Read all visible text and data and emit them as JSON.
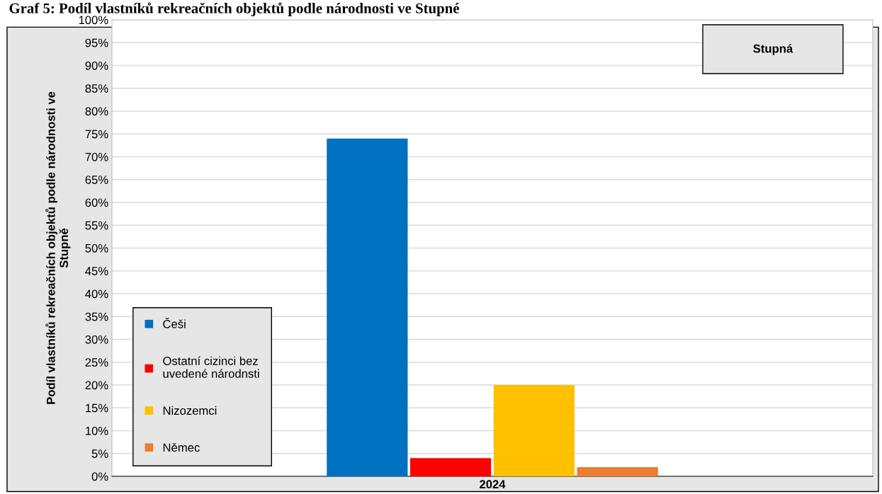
{
  "chart_data": {
    "type": "bar",
    "title": "Graf 5: Podíl vlastníků rekreačních objektů podle národnosti ve Stupné",
    "ylabel": "Podíl vlastníků rekreačních objektů podle národnosti ve\nStupně",
    "categories": [
      "2024"
    ],
    "series": [
      {
        "name": "Češi",
        "color": "#0070c0",
        "values": [
          74
        ]
      },
      {
        "name": "Ostatní cizinci bez\nuvedené národnsti",
        "color": "#ff0000",
        "values": [
          4
        ]
      },
      {
        "name": "Nizozemci",
        "color": "#ffc000",
        "values": [
          20
        ]
      },
      {
        "name": "Němec",
        "color": "#ed7d31",
        "values": [
          2
        ]
      }
    ],
    "ylim": [
      0,
      100
    ],
    "yticks": [
      {
        "value": 0,
        "label": "0%"
      },
      {
        "value": 5,
        "label": "5%"
      },
      {
        "value": 10,
        "label": "10%"
      },
      {
        "value": 15,
        "label": "15%"
      },
      {
        "value": 20,
        "label": "20%"
      },
      {
        "value": 25,
        "label": "25%"
      },
      {
        "value": 30,
        "label": "30%"
      },
      {
        "value": 35,
        "label": "35%"
      },
      {
        "value": 40,
        "label": "40%"
      },
      {
        "value": 45,
        "label": "45%"
      },
      {
        "value": 50,
        "label": "50%"
      },
      {
        "value": 55,
        "label": "55%"
      },
      {
        "value": 60,
        "label": "60%"
      },
      {
        "value": 65,
        "label": "65%"
      },
      {
        "value": 70,
        "label": "70%"
      },
      {
        "value": 75,
        "label": "75%"
      },
      {
        "value": 80,
        "label": "80%"
      },
      {
        "value": 85,
        "label": "85%"
      },
      {
        "value": 90,
        "label": "90%"
      },
      {
        "value": 95,
        "label": "95%"
      },
      {
        "value": 100,
        "label": "100%"
      }
    ],
    "grid": "y",
    "legend": "bottom left",
    "annotations": [
      "Stupná"
    ]
  }
}
